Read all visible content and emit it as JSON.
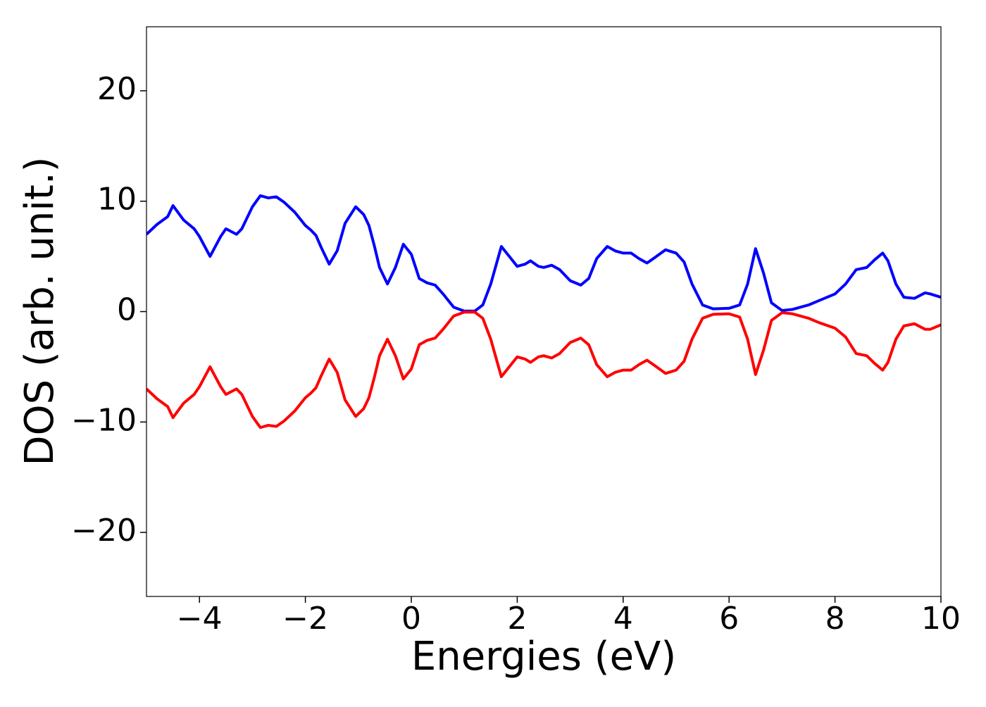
{
  "chart_data": {
    "type": "line",
    "xlabel": "Energies (eV)",
    "ylabel": "DOS (arb. unit.)",
    "x": [
      -5.0,
      -4.8,
      -4.6,
      -4.5,
      -4.3,
      -4.1,
      -4.0,
      -3.8,
      -3.6,
      -3.5,
      -3.3,
      -3.2,
      -3.0,
      -2.85,
      -2.7,
      -2.55,
      -2.4,
      -2.2,
      -2.0,
      -1.9,
      -1.8,
      -1.7,
      -1.55,
      -1.4,
      -1.25,
      -1.05,
      -0.9,
      -0.8,
      -0.7,
      -0.6,
      -0.45,
      -0.3,
      -0.15,
      0.0,
      0.15,
      0.3,
      0.45,
      0.6,
      0.8,
      1.0,
      1.2,
      1.35,
      1.5,
      1.7,
      1.85,
      2.0,
      2.15,
      2.25,
      2.4,
      2.5,
      2.65,
      2.8,
      3.0,
      3.2,
      3.35,
      3.5,
      3.7,
      3.85,
      4.0,
      4.15,
      4.3,
      4.45,
      4.6,
      4.8,
      5.0,
      5.15,
      5.3,
      5.5,
      5.7,
      6.0,
      6.2,
      6.35,
      6.5,
      6.65,
      6.8,
      7.0,
      7.2,
      7.5,
      7.7,
      8.0,
      8.2,
      8.4,
      8.6,
      8.75,
      8.9,
      9.0,
      9.15,
      9.3,
      9.5,
      9.7,
      9.8,
      10.0
    ],
    "series": [
      {
        "color": "#0000ff",
        "values": [
          7.0,
          7.9,
          8.6,
          9.6,
          8.3,
          7.5,
          6.8,
          5.0,
          6.8,
          7.5,
          7.0,
          7.5,
          9.5,
          10.5,
          10.3,
          10.4,
          9.9,
          9.0,
          7.8,
          7.4,
          6.9,
          5.8,
          4.3,
          5.5,
          8.0,
          9.5,
          8.8,
          7.8,
          6.0,
          4.0,
          2.5,
          4.0,
          6.1,
          5.2,
          3.0,
          2.6,
          2.4,
          1.6,
          0.4,
          0.05,
          0.05,
          0.6,
          2.5,
          5.9,
          5.0,
          4.1,
          4.3,
          4.6,
          4.1,
          4.0,
          4.2,
          3.8,
          2.8,
          2.4,
          3.0,
          4.8,
          5.9,
          5.5,
          5.3,
          5.3,
          4.8,
          4.4,
          4.9,
          5.6,
          5.3,
          4.5,
          2.5,
          0.6,
          0.25,
          0.3,
          0.6,
          2.5,
          5.7,
          3.5,
          0.8,
          0.1,
          0.2,
          0.6,
          1.0,
          1.6,
          2.5,
          3.8,
          4.0,
          4.7,
          5.3,
          4.6,
          2.5,
          1.3,
          1.2,
          1.7,
          1.6,
          1.3
        ]
      },
      {
        "color": "#ff0000",
        "values": [
          -7.0,
          -7.9,
          -8.6,
          -9.6,
          -8.3,
          -7.5,
          -6.8,
          -5.0,
          -6.8,
          -7.5,
          -7.0,
          -7.5,
          -9.5,
          -10.5,
          -10.3,
          -10.4,
          -9.9,
          -9.0,
          -7.8,
          -7.4,
          -6.9,
          -5.8,
          -4.3,
          -5.5,
          -8.0,
          -9.5,
          -8.8,
          -7.8,
          -6.0,
          -4.0,
          -2.5,
          -4.0,
          -6.1,
          -5.2,
          -3.0,
          -2.6,
          -2.4,
          -1.6,
          -0.4,
          -0.05,
          -0.05,
          -0.6,
          -2.5,
          -5.9,
          -5.0,
          -4.1,
          -4.3,
          -4.6,
          -4.1,
          -4.0,
          -4.2,
          -3.8,
          -2.8,
          -2.4,
          -3.0,
          -4.8,
          -5.9,
          -5.5,
          -5.3,
          -5.3,
          -4.8,
          -4.4,
          -4.9,
          -5.6,
          -5.3,
          -4.5,
          -2.5,
          -0.6,
          -0.25,
          -0.2,
          -0.5,
          -2.5,
          -5.7,
          -3.5,
          -0.8,
          -0.1,
          -0.2,
          -0.6,
          -1.0,
          -1.5,
          -2.3,
          -3.8,
          -4.0,
          -4.7,
          -5.3,
          -4.6,
          -2.5,
          -1.3,
          -1.1,
          -1.6,
          -1.6,
          -1.2
        ]
      }
    ],
    "xlim": [
      -5,
      10
    ],
    "ylim": [
      -25.8,
      25.8
    ],
    "xticks": [
      {
        "value": -4,
        "label": "−4"
      },
      {
        "value": -2,
        "label": "−2"
      },
      0,
      2,
      4,
      6,
      8,
      10
    ],
    "yticks": [
      {
        "value": -20,
        "label": "−20"
      },
      {
        "value": -10,
        "label": "−10"
      },
      0,
      10,
      20
    ]
  }
}
